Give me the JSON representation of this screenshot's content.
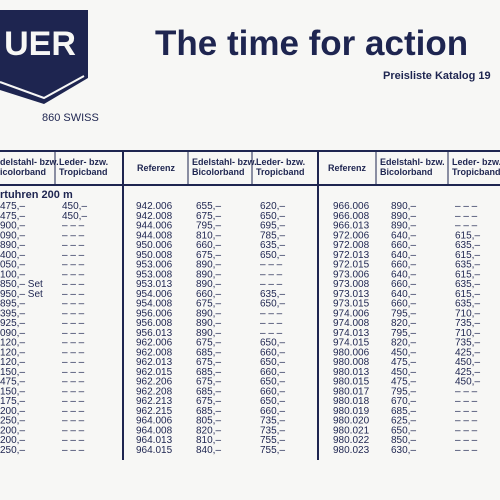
{
  "logo": {
    "brand": "UER",
    "tagline": "860 SWISS"
  },
  "header": {
    "title": "The time for action",
    "subtitle": "Preisliste Katalog 19"
  },
  "table": {
    "columns": [
      [
        "delstahl- bzw.",
        "icolorband"
      ],
      [
        "Leder- bzw.",
        "Tropicband"
      ],
      [
        "Referenz"
      ],
      [
        "Edelstahl- bzw.",
        "Bicolorband"
      ],
      [
        "Leder- bzw.",
        "Tropicband"
      ],
      [
        "Referenz"
      ],
      [
        "Edelstahl- bzw.",
        "Bicolorband"
      ],
      [
        "Leder- bzw.",
        "Tropicband"
      ]
    ],
    "section": "rtuhren 200 m",
    "groups": [
      {
        "rows": [
          [
            "475,–",
            "450,–"
          ],
          [
            "475,–",
            "450,–"
          ],
          [
            "900,–",
            "– – –"
          ],
          [
            "090,–",
            "– – –"
          ],
          [
            "890,–",
            "– – –"
          ],
          [
            "400,–",
            "– – –"
          ],
          [
            "050,–",
            "– – –"
          ],
          [
            "100,–",
            "– – –"
          ],
          [
            "850,– Set",
            "– – –"
          ],
          [
            "950,– Set",
            "– – –"
          ],
          [
            "895,–",
            "– – –"
          ],
          [
            "395,–",
            "– – –"
          ],
          [
            "925,–",
            "– – –"
          ],
          [
            "090,–",
            "– – –"
          ],
          [
            "120,–",
            "– – –"
          ],
          [
            "120,–",
            "– – –"
          ],
          [
            "120,–",
            "– – –"
          ],
          [
            "150,–",
            "– – –"
          ],
          [
            "475,–",
            "– – –"
          ],
          [
            "150,–",
            "– – –"
          ],
          [
            "175,–",
            "– – –"
          ],
          [
            "200,–",
            "– – –"
          ],
          [
            "250,–",
            "– – –"
          ],
          [
            "200,–",
            "– – –"
          ],
          [
            "200,–",
            "– – –"
          ],
          [
            "250,–",
            "– – –"
          ]
        ]
      },
      {
        "rows": [
          [
            "942.006",
            "655,–",
            "620,–"
          ],
          [
            "942.008",
            "675,–",
            "650,–"
          ],
          [
            "944.006",
            "795,–",
            "695,–"
          ],
          [
            "944.008",
            "810,–",
            "785,–"
          ],
          [
            "950.006",
            "660,–",
            "635,–"
          ],
          [
            "950.008",
            "675,–",
            "650,–"
          ],
          [
            "953.006",
            "890,–",
            "– – –"
          ],
          [
            "953.008",
            "890,–",
            "– – –"
          ],
          [
            "953.013",
            "890,–",
            "– – –"
          ],
          [
            "954.006",
            "660,–",
            "635,–"
          ],
          [
            "954.008",
            "675,–",
            "650,–"
          ],
          [
            "956.006",
            "890,–",
            "– – –"
          ],
          [
            "956.008",
            "890,–",
            "– – –"
          ],
          [
            "956.013",
            "890,–",
            "– – –"
          ],
          [
            "962.006",
            "675,–",
            "650,–"
          ],
          [
            "962.008",
            "685,–",
            "660,–"
          ],
          [
            "962.013",
            "675,–",
            "650,–"
          ],
          [
            "962.015",
            "685,–",
            "660,–"
          ],
          [
            "962.206",
            "675,–",
            "650,–"
          ],
          [
            "962.208",
            "685,–",
            "660,–"
          ],
          [
            "962.213",
            "675,–",
            "650,–"
          ],
          [
            "962.215",
            "685,–",
            "660,–"
          ],
          [
            "964.006",
            "805,–",
            "735,–"
          ],
          [
            "964.008",
            "820,–",
            "735,–"
          ],
          [
            "964.013",
            "810,–",
            "755,–"
          ],
          [
            "964.015",
            "840,–",
            "755,–"
          ]
        ]
      },
      {
        "rows": [
          [
            "966.006",
            "890,–",
            "– – –"
          ],
          [
            "966.008",
            "890,–",
            "– – –"
          ],
          [
            "966.013",
            "890,–",
            "– – –"
          ],
          [
            "972.006",
            "640,–",
            "615,–"
          ],
          [
            "972.008",
            "660,–",
            "635,–"
          ],
          [
            "972.013",
            "640,–",
            "615,–"
          ],
          [
            "972.015",
            "660,–",
            "635,–"
          ],
          [
            "973.006",
            "640,–",
            "615,–"
          ],
          [
            "973.008",
            "660,–",
            "635,–"
          ],
          [
            "973.013",
            "640,–",
            "615,–"
          ],
          [
            "973.015",
            "660,–",
            "635,–"
          ],
          [
            "974.006",
            "795,–",
            "710,–"
          ],
          [
            "974.008",
            "820,–",
            "735,–"
          ],
          [
            "974.013",
            "795,–",
            "710,–"
          ],
          [
            "974.015",
            "820,–",
            "735,–"
          ],
          [
            "980.006",
            "450,–",
            "425,–"
          ],
          [
            "980.008",
            "475,–",
            "450,–"
          ],
          [
            "980.013",
            "450,–",
            "425,–"
          ],
          [
            "980.015",
            "475,–",
            "450,–"
          ],
          [
            "980.017",
            "795,–",
            "– – –"
          ],
          [
            "980.018",
            "670,–",
            "– – –"
          ],
          [
            "980.019",
            "685,–",
            "– – –"
          ],
          [
            "980.020",
            "625,–",
            "– – –"
          ],
          [
            "980.021",
            "650,–",
            "– – –"
          ],
          [
            "980.022",
            "850,–",
            "– – –"
          ],
          [
            "980.023",
            "630,–",
            "– – –"
          ]
        ]
      }
    ]
  }
}
